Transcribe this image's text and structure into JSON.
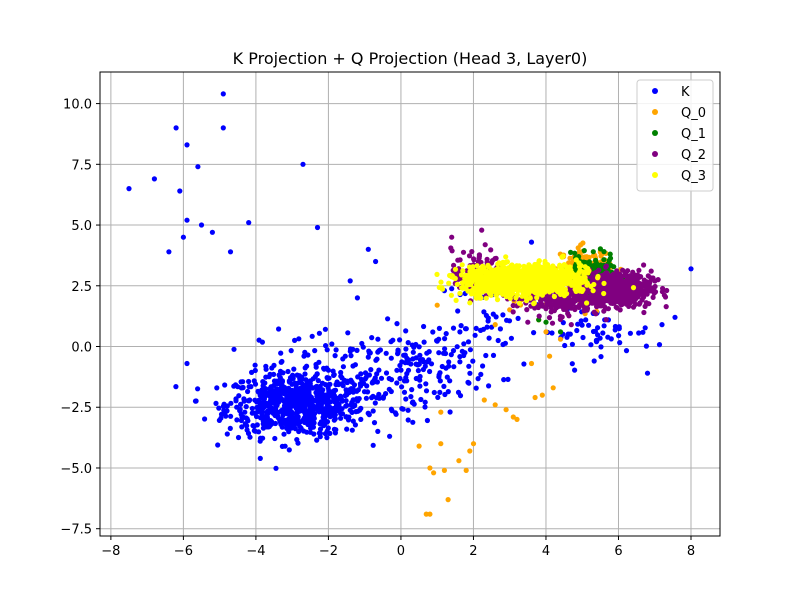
{
  "chart_data": {
    "type": "scatter",
    "title": "K Projection + Q Projection (Head 3, Layer0)",
    "xlabel": "",
    "ylabel": "",
    "xlim": [
      -8.3,
      8.8
    ],
    "ylim": [
      -7.8,
      11.3
    ],
    "xticks": [
      -8,
      -6,
      -4,
      -2,
      0,
      2,
      4,
      6,
      8
    ],
    "yticks": [
      -7.5,
      -5.0,
      -2.5,
      0.0,
      2.5,
      5.0,
      7.5,
      10.0
    ],
    "xtick_labels": [
      "−8",
      "−6",
      "−4",
      "−2",
      "0",
      "2",
      "4",
      "6",
      "8"
    ],
    "ytick_labels": [
      "−7.5",
      "−5.0",
      "−2.5",
      "0.0",
      "2.5",
      "5.0",
      "7.5",
      "10.0"
    ],
    "grid": true,
    "legend_position": "top-right",
    "series": [
      {
        "name": "K",
        "color": "#0000ff",
        "clusters": [
          {
            "cx": -2.9,
            "cy": -2.4,
            "sx": 0.95,
            "sy": 0.65,
            "n": 700
          },
          {
            "cx": -1.2,
            "cy": -1.2,
            "sx": 1.3,
            "sy": 1.0,
            "n": 180
          },
          {
            "cx": 0.9,
            "cy": -0.6,
            "sx": 0.9,
            "sy": 0.8,
            "n": 90
          },
          {
            "cx": 5.2,
            "cy": 0.6,
            "sx": 0.9,
            "sy": 0.5,
            "n": 60
          },
          {
            "cx": 2.6,
            "cy": 0.8,
            "sx": 0.7,
            "sy": 1.0,
            "n": 40
          }
        ],
        "points": [
          [
            -7.5,
            6.5
          ],
          [
            -6.8,
            6.9
          ],
          [
            -6.2,
            9.0
          ],
          [
            -6.1,
            6.4
          ],
          [
            -5.9,
            8.3
          ],
          [
            -5.6,
            7.4
          ],
          [
            -5.9,
            5.2
          ],
          [
            -5.5,
            5.0
          ],
          [
            -5.2,
            4.7
          ],
          [
            -4.9,
            10.4
          ],
          [
            -4.9,
            9.0
          ],
          [
            -4.2,
            5.1
          ],
          [
            -2.7,
            7.5
          ],
          [
            -2.3,
            4.9
          ],
          [
            -4.7,
            3.9
          ],
          [
            -6.4,
            3.9
          ],
          [
            -6.0,
            4.5
          ],
          [
            -0.9,
            4.0
          ],
          [
            -0.7,
            3.5
          ],
          [
            -1.4,
            2.7
          ],
          [
            8.0,
            3.2
          ],
          [
            7.2,
            0.9
          ],
          [
            6.8,
            -1.1
          ],
          [
            -5.9,
            -0.7
          ],
          [
            3.6,
            4.3
          ],
          [
            1.2,
            2.3
          ],
          [
            -1.2,
            2.0
          ]
        ]
      },
      {
        "name": "Q_0",
        "color": "#ffa500",
        "clusters": [
          {
            "cx": 5.1,
            "cy": 3.3,
            "sx": 0.35,
            "sy": 0.4,
            "n": 110
          },
          {
            "cx": 4.2,
            "cy": 2.0,
            "sx": 0.6,
            "sy": 0.4,
            "n": 25
          }
        ],
        "points": [
          [
            0.7,
            -6.9
          ],
          [
            0.8,
            -6.9
          ],
          [
            0.8,
            -5.0
          ],
          [
            0.9,
            -5.2
          ],
          [
            1.2,
            -5.1
          ],
          [
            1.3,
            -6.3
          ],
          [
            1.6,
            -4.7
          ],
          [
            1.8,
            -5.1
          ],
          [
            1.9,
            -4.3
          ],
          [
            2.0,
            -4.0
          ],
          [
            0.5,
            -4.1
          ],
          [
            1.1,
            -4.0
          ],
          [
            1.1,
            -2.7
          ],
          [
            2.3,
            -2.2
          ],
          [
            2.6,
            -2.4
          ],
          [
            2.9,
            -2.6
          ],
          [
            3.1,
            -2.9
          ],
          [
            3.2,
            -3.0
          ],
          [
            3.7,
            -2.1
          ],
          [
            3.9,
            -2.0
          ],
          [
            4.2,
            -1.7
          ],
          [
            3.6,
            -0.7
          ],
          [
            4.1,
            -0.4
          ],
          [
            4.4,
            0.3
          ],
          [
            2.6,
            0.9
          ],
          [
            4.0,
            0.6
          ],
          [
            1.0,
            1.7
          ],
          [
            3.8,
            1.1
          ]
        ]
      },
      {
        "name": "Q_1",
        "color": "#008000",
        "clusters": [
          {
            "cx": 5.2,
            "cy": 3.0,
            "sx": 0.35,
            "sy": 0.35,
            "n": 170
          }
        ],
        "points": [
          [
            4.4,
            0.6
          ],
          [
            4.0,
            1.0
          ],
          [
            3.8,
            1.1
          ],
          [
            4.9,
            3.7
          ],
          [
            5.6,
            2.9
          ]
        ]
      },
      {
        "name": "Q_2",
        "color": "#800080",
        "clusters": [
          {
            "cx": 5.9,
            "cy": 2.4,
            "sx": 0.5,
            "sy": 0.35,
            "n": 650
          },
          {
            "cx": 4.3,
            "cy": 2.0,
            "sx": 0.6,
            "sy": 0.35,
            "n": 250
          },
          {
            "cx": 2.1,
            "cy": 3.0,
            "sx": 0.35,
            "sy": 0.5,
            "n": 120
          }
        ],
        "points": [
          [
            1.4,
            4.5
          ],
          [
            1.5,
            2.6
          ],
          [
            6.7,
            1.4
          ],
          [
            4.7,
            0.9
          ],
          [
            3.5,
            1.0
          ]
        ]
      },
      {
        "name": "Q_3",
        "color": "#ffff00",
        "clusters": [
          {
            "cx": 3.2,
            "cy": 2.7,
            "sx": 0.75,
            "sy": 0.3,
            "n": 950
          },
          {
            "cx": 4.4,
            "cy": 2.9,
            "sx": 0.4,
            "sy": 0.3,
            "n": 150
          }
        ],
        "points": [
          [
            1.7,
            2.4
          ],
          [
            1.9,
            1.8
          ],
          [
            5.3,
            2.3
          ],
          [
            5.6,
            2.6
          ],
          [
            1.5,
            2.8
          ]
        ]
      }
    ]
  }
}
